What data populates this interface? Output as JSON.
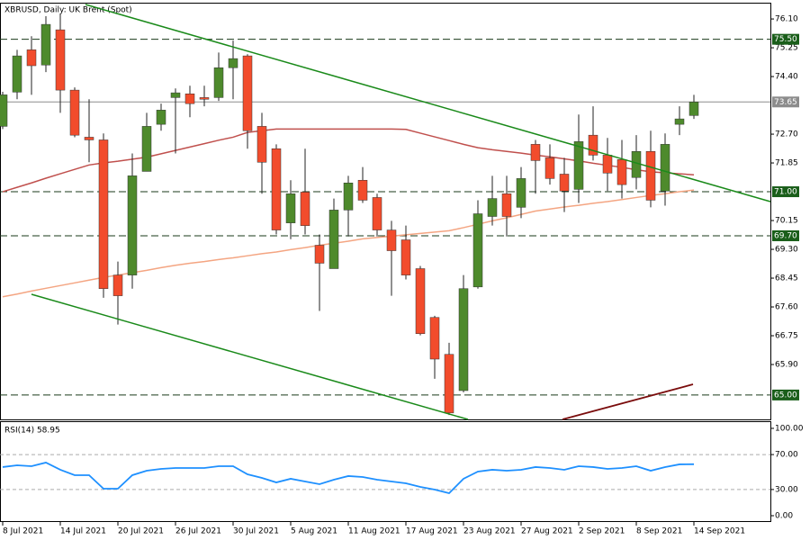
{
  "chart_data": {
    "type": "candlestick",
    "title": "XBRUSD, Daily:  UK Brent (Spot)",
    "categories": [
      "8 Jul 2021",
      null,
      null,
      null,
      "14 Jul 2021",
      null,
      null,
      null,
      "20 Jul 2021",
      null,
      null,
      null,
      "26 Jul 2021",
      null,
      null,
      null,
      "30 Jul 2021",
      null,
      null,
      null,
      "5 Aug 2021",
      null,
      null,
      null,
      "11 Aug 2021",
      null,
      null,
      null,
      "17 Aug 2021",
      null,
      null,
      null,
      "23 Aug 2021",
      null,
      null,
      null,
      "27 Aug 2021",
      null,
      null,
      null,
      "2 Sep 2021",
      null,
      null,
      null,
      "8 Sep 2021",
      null,
      null,
      null,
      "14 Sep 2021"
    ],
    "open": [
      72.93,
      73.94,
      75.19,
      74.74,
      75.78,
      74.0,
      72.61,
      72.53,
      68.54,
      68.54,
      71.6,
      72.99,
      73.78,
      73.89,
      73.78,
      73.78,
      74.66,
      75.01,
      72.93,
      72.27,
      70.08,
      70.99,
      69.42,
      68.73,
      70.46,
      71.34,
      70.83,
      69.87,
      69.58,
      68.73,
      67.29,
      66.2,
      65.13,
      68.19,
      70.27,
      70.94,
      70.54,
      72.4,
      72.0,
      71.52,
      71.07,
      72.67,
      72.08,
      71.95,
      71.42,
      72.19,
      71.02,
      72.99,
      73.25
    ],
    "high": [
      73.95,
      75.19,
      75.59,
      76.18,
      76.26,
      74.08,
      73.73,
      72.72,
      68.94,
      72.13,
      73.33,
      73.6,
      74.05,
      74.13,
      74.13,
      75.11,
      75.46,
      75.06,
      73.33,
      72.4,
      71.34,
      72.27,
      69.74,
      70.8,
      71.47,
      71.73,
      70.94,
      70.14,
      70.0,
      68.81,
      67.34,
      66.54,
      68.54,
      70.75,
      71.47,
      71.47,
      71.73,
      72.53,
      72.4,
      72.0,
      73.28,
      73.52,
      72.59,
      72.53,
      72.67,
      72.8,
      72.72,
      73.52,
      73.86
    ],
    "low": [
      72.85,
      73.73,
      73.86,
      74.53,
      73.33,
      72.61,
      71.87,
      67.87,
      67.08,
      68.14,
      71.6,
      72.8,
      72.13,
      73.2,
      73.52,
      73.68,
      73.73,
      72.27,
      70.94,
      69.74,
      69.6,
      69.74,
      67.48,
      68.73,
      69.68,
      70.67,
      69.68,
      67.93,
      68.41,
      66.76,
      65.48,
      64.41,
      65.08,
      68.14,
      70.0,
      69.68,
      70.22,
      70.94,
      71.21,
      70.4,
      70.67,
      71.92,
      71.02,
      70.8,
      71.07,
      70.54,
      70.59,
      72.67,
      73.15
    ],
    "close": [
      73.86,
      75.01,
      74.72,
      75.94,
      74.0,
      72.67,
      72.53,
      68.14,
      67.93,
      71.47,
      72.93,
      73.41,
      73.92,
      73.6,
      73.73,
      74.66,
      74.93,
      72.8,
      71.87,
      69.87,
      70.94,
      70.0,
      68.89,
      70.46,
      71.26,
      70.75,
      69.87,
      69.26,
      68.54,
      66.81,
      66.06,
      64.47,
      68.14,
      70.35,
      70.8,
      70.27,
      71.39,
      71.92,
      71.39,
      71.02,
      72.48,
      72.08,
      71.55,
      71.21,
      72.19,
      70.75,
      72.4,
      73.15,
      73.65
    ],
    "up_color": "#4e8a2c",
    "down_color": "#f24c2c",
    "series": [
      {
        "color": "#c0504d",
        "values": [
          71.0,
          71.13,
          71.26,
          71.4,
          71.53,
          71.66,
          71.79,
          71.85,
          71.9,
          71.96,
          72.02,
          72.12,
          72.22,
          72.32,
          72.42,
          72.52,
          72.61,
          72.75,
          72.8,
          72.85,
          72.85,
          72.85,
          72.85,
          72.85,
          72.85,
          72.85,
          72.85,
          72.85,
          72.84,
          72.73,
          72.62,
          72.51,
          72.4,
          72.3,
          72.24,
          72.19,
          72.14,
          72.08,
          72.03,
          71.97,
          71.91,
          71.84,
          71.78,
          71.72,
          71.65,
          71.59,
          71.56,
          71.53,
          71.5
        ]
      },
      {
        "color": "#f4a582",
        "values": [
          67.9,
          67.98,
          68.07,
          68.15,
          68.23,
          68.31,
          68.39,
          68.47,
          68.54,
          68.61,
          68.68,
          68.76,
          68.83,
          68.89,
          68.94,
          69.0,
          69.05,
          69.11,
          69.17,
          69.22,
          69.29,
          69.35,
          69.42,
          69.48,
          69.54,
          69.61,
          69.65,
          69.69,
          69.73,
          69.77,
          69.81,
          69.85,
          69.94,
          70.04,
          70.14,
          70.23,
          70.33,
          70.43,
          70.49,
          70.55,
          70.6,
          70.66,
          70.71,
          70.77,
          70.83,
          70.89,
          70.94,
          71.0,
          71.05
        ]
      }
    ],
    "ylim": [
      64.28,
      76.58
    ],
    "yticks": [
      {
        "value": 76.1,
        "label": "76.10"
      },
      {
        "value": 75.25,
        "label": "75.25"
      },
      {
        "value": 74.4,
        "label": "74.40"
      },
      {
        "value": 72.7,
        "label": "72.70"
      },
      {
        "value": 71.85,
        "label": "71.85"
      },
      {
        "value": 70.15,
        "label": "70.15"
      },
      {
        "value": 69.3,
        "label": "69.30"
      },
      {
        "value": 68.45,
        "label": "68.45"
      },
      {
        "value": 67.6,
        "label": "67.60"
      },
      {
        "value": 66.75,
        "label": "66.75"
      },
      {
        "value": 65.9,
        "label": "65.90"
      }
    ],
    "levels": [
      {
        "value": 75.5,
        "label": "75.50",
        "color": "#1a5e1a",
        "dashed": true
      },
      {
        "value": 73.65,
        "label": "73.65",
        "color": "#8c8c8c",
        "dashed": false
      },
      {
        "value": 71.0,
        "label": "71.00",
        "color": "#1a5e1a",
        "dashed": true
      },
      {
        "value": 69.7,
        "label": "69.70",
        "color": "#1a5e1a",
        "dashed": true
      },
      {
        "value": 65.0,
        "label": "65.00",
        "color": "#1a5e1a",
        "dashed": true
      }
    ],
    "rsi": {
      "label": "RSI(14) 58.95",
      "color": "#1e90ff",
      "values": [
        55.7,
        57.7,
        56.7,
        60.8,
        52.6,
        46.4,
        46.4,
        30.9,
        30.9,
        46.4,
        51.5,
        53.6,
        54.6,
        54.6,
        54.6,
        56.7,
        56.7,
        47.4,
        43.3,
        38.1,
        42.3,
        39.2,
        36.1,
        41.2,
        45.4,
        44.3,
        41.2,
        39.2,
        37.1,
        33.0,
        29.9,
        25.8,
        42.3,
        50.5,
        52.6,
        51.5,
        52.6,
        55.7,
        54.6,
        52.6,
        56.7,
        55.7,
        53.6,
        54.6,
        56.7,
        51.5,
        55.7,
        58.8,
        58.95
      ],
      "ylim": [
        -7.2,
        108.2
      ],
      "yticks": [
        {
          "value": 100,
          "label": "100.00"
        },
        {
          "value": 70,
          "label": "70.00"
        },
        {
          "value": 30,
          "label": "30.00"
        },
        {
          "value": 0,
          "label": "0.00"
        }
      ],
      "levels": [
        70,
        30
      ]
    }
  }
}
